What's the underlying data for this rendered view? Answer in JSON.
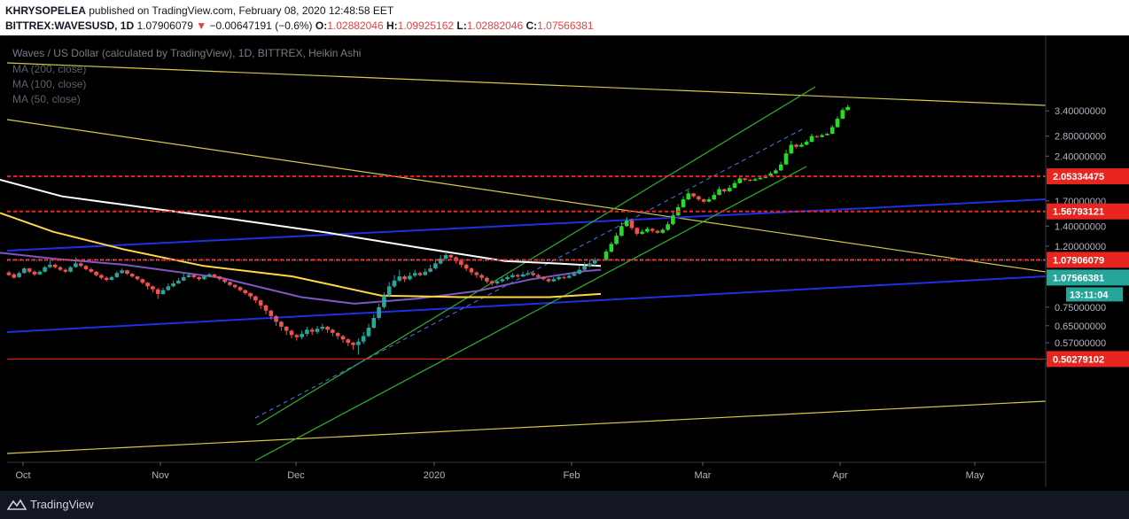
{
  "header": {
    "publisher": "KHRYSOPELEA",
    "published_text": "published on TradingView.com, February 08, 2020 12:48:58 EET",
    "symbol": "BITTREX:WAVESUSD, 1D",
    "last": "1.07906079",
    "arrow": "▼",
    "change": "−0.00647191 (−0.6%)",
    "o_label": "O:",
    "o_value": "1.02882046",
    "h_label": "H:",
    "h_value": "1.09925162",
    "l_label": "L:",
    "l_value": "1.02882046",
    "c_label": "C:",
    "c_value": "1.07566381"
  },
  "legend": {
    "title": "Waves / US Dollar (calculated by TradingView), 1D, BITTREX, Heikin Ashi",
    "ma200": "MA (200, close)",
    "ma100": "MA (100, close)",
    "ma50": "MA (50, close)"
  },
  "footer": {
    "brand": "TradingView"
  },
  "colors": {
    "background": "#000000",
    "up": "#26a69a",
    "down": "#ef5350",
    "projection_up": "#22dd22",
    "ma200": "#ffffff",
    "ma100": "#7e57c2",
    "ma50": "#ffd740",
    "trend_yellow": "#d4c94a",
    "trend_blue": "#1f2fe6",
    "channel_green": "#2bb52b",
    "level_red": "#ff1e1e"
  },
  "chart_data": {
    "type": "candlestick",
    "scale": "log",
    "x_ticks": [
      "Oct",
      "Nov",
      "Dec",
      "2020",
      "Feb",
      "Mar",
      "Apr",
      "May"
    ],
    "y_ticks": [
      "3.40000000",
      "2.80000000",
      "2.40000000",
      "1.70000000",
      "1.40000000",
      "1.20000000",
      "0.75000000",
      "0.65000000",
      "0.57000000"
    ],
    "y_range": [
      0.45,
      3.8
    ],
    "price_labels": [
      {
        "value": 2.05334475,
        "text": "2.05334475",
        "kind": "level"
      },
      {
        "value": 1.56793121,
        "text": "1.56793121",
        "kind": "level"
      },
      {
        "value": 1.07906079,
        "text": "1.07906079",
        "kind": "level"
      },
      {
        "value": 1.07566381,
        "text": "1.07566381",
        "kind": "last"
      },
      {
        "value": 0.50279102,
        "text": "0.50279102",
        "kind": "level"
      }
    ],
    "countdown": "13:11:04",
    "horizontal_levels": [
      2.05334475,
      1.56793121,
      1.07906079,
      0.50279102
    ],
    "last_close": 1.07566381,
    "candles_ohlc": [
      [
        0.98,
        0.96,
        0.992,
        0.955
      ],
      [
        0.965,
        0.94,
        0.975,
        0.935
      ],
      [
        0.945,
        0.975,
        0.985,
        0.94
      ],
      [
        0.975,
        1.01,
        1.02,
        0.97
      ],
      [
        1.01,
        0.985,
        1.015,
        0.975
      ],
      [
        0.985,
        0.965,
        0.995,
        0.955
      ],
      [
        0.965,
        0.985,
        0.995,
        0.96
      ],
      [
        0.985,
        1.02,
        1.03,
        0.98
      ],
      [
        1.02,
        1.04,
        1.07,
        1.015
      ],
      [
        1.04,
        1.02,
        1.05,
        1.01
      ],
      [
        1.02,
        1.0,
        1.03,
        0.99
      ],
      [
        1.0,
        0.985,
        1.01,
        0.975
      ],
      [
        0.985,
        1.02,
        1.03,
        0.98
      ],
      [
        1.02,
        1.05,
        1.1,
        1.015
      ],
      [
        1.05,
        1.03,
        1.06,
        1.02
      ],
      [
        1.03,
        1.005,
        1.04,
        0.995
      ],
      [
        1.005,
        0.985,
        1.015,
        0.975
      ],
      [
        0.985,
        0.96,
        0.99,
        0.95
      ],
      [
        0.96,
        0.94,
        0.97,
        0.93
      ],
      [
        0.94,
        0.925,
        0.95,
        0.915
      ],
      [
        0.925,
        0.945,
        0.955,
        0.92
      ],
      [
        0.945,
        0.975,
        0.99,
        0.94
      ],
      [
        0.975,
        0.995,
        1.01,
        0.97
      ],
      [
        0.995,
        0.97,
        1.0,
        0.96
      ],
      [
        0.97,
        0.95,
        0.975,
        0.94
      ],
      [
        0.95,
        0.93,
        0.955,
        0.92
      ],
      [
        0.93,
        0.905,
        0.935,
        0.895
      ],
      [
        0.905,
        0.88,
        0.91,
        0.86
      ],
      [
        0.88,
        0.86,
        0.885,
        0.84
      ],
      [
        0.86,
        0.83,
        0.87,
        0.8
      ],
      [
        0.83,
        0.855,
        0.87,
        0.825
      ],
      [
        0.855,
        0.88,
        0.9,
        0.85
      ],
      [
        0.88,
        0.9,
        0.92,
        0.875
      ],
      [
        0.9,
        0.92,
        0.94,
        0.895
      ],
      [
        0.92,
        0.945,
        0.97,
        0.915
      ],
      [
        0.945,
        0.96,
        0.98,
        0.94
      ],
      [
        0.96,
        0.945,
        0.965,
        0.935
      ],
      [
        0.945,
        0.93,
        0.95,
        0.92
      ],
      [
        0.93,
        0.95,
        0.96,
        0.925
      ],
      [
        0.95,
        0.965,
        0.975,
        0.945
      ],
      [
        0.965,
        0.95,
        0.97,
        0.94
      ],
      [
        0.95,
        0.93,
        0.955,
        0.92
      ],
      [
        0.93,
        0.91,
        0.935,
        0.9
      ],
      [
        0.91,
        0.89,
        0.915,
        0.88
      ],
      [
        0.89,
        0.875,
        0.895,
        0.865
      ],
      [
        0.875,
        0.855,
        0.88,
        0.845
      ],
      [
        0.855,
        0.835,
        0.86,
        0.825
      ],
      [
        0.835,
        0.815,
        0.84,
        0.8
      ],
      [
        0.815,
        0.79,
        0.82,
        0.775
      ],
      [
        0.79,
        0.76,
        0.795,
        0.74
      ],
      [
        0.76,
        0.73,
        0.765,
        0.71
      ],
      [
        0.73,
        0.7,
        0.735,
        0.68
      ],
      [
        0.7,
        0.67,
        0.705,
        0.65
      ],
      [
        0.67,
        0.645,
        0.675,
        0.625
      ],
      [
        0.645,
        0.625,
        0.65,
        0.605
      ],
      [
        0.625,
        0.605,
        0.63,
        0.59
      ],
      [
        0.605,
        0.595,
        0.61,
        0.58
      ],
      [
        0.595,
        0.61,
        0.625,
        0.585
      ],
      [
        0.61,
        0.63,
        0.645,
        0.6
      ],
      [
        0.63,
        0.62,
        0.64,
        0.605
      ],
      [
        0.62,
        0.635,
        0.65,
        0.61
      ],
      [
        0.635,
        0.645,
        0.66,
        0.625
      ],
      [
        0.645,
        0.63,
        0.65,
        0.615
      ],
      [
        0.63,
        0.615,
        0.635,
        0.6
      ],
      [
        0.615,
        0.6,
        0.62,
        0.585
      ],
      [
        0.6,
        0.585,
        0.605,
        0.57
      ],
      [
        0.585,
        0.57,
        0.59,
        0.555
      ],
      [
        0.57,
        0.56,
        0.575,
        0.54
      ],
      [
        0.56,
        0.575,
        0.59,
        0.52
      ],
      [
        0.575,
        0.6,
        0.62,
        0.565
      ],
      [
        0.6,
        0.64,
        0.66,
        0.595
      ],
      [
        0.64,
        0.69,
        0.71,
        0.635
      ],
      [
        0.69,
        0.75,
        0.77,
        0.68
      ],
      [
        0.75,
        0.82,
        0.84,
        0.74
      ],
      [
        0.82,
        0.88,
        0.91,
        0.81
      ],
      [
        0.88,
        0.92,
        0.96,
        0.87
      ],
      [
        0.92,
        0.95,
        1.0,
        0.91
      ],
      [
        0.95,
        0.93,
        0.96,
        0.91
      ],
      [
        0.93,
        0.955,
        0.98,
        0.92
      ],
      [
        0.955,
        0.975,
        1.0,
        0.945
      ],
      [
        0.975,
        0.96,
        0.985,
        0.95
      ],
      [
        0.96,
        0.985,
        1.01,
        0.955
      ],
      [
        0.985,
        1.01,
        1.04,
        0.98
      ],
      [
        1.01,
        1.05,
        1.08,
        1.0
      ],
      [
        1.05,
        1.09,
        1.12,
        1.04
      ],
      [
        1.09,
        1.12,
        1.15,
        1.08
      ],
      [
        1.12,
        1.1,
        1.13,
        1.08
      ],
      [
        1.1,
        1.07,
        1.11,
        1.05
      ],
      [
        1.07,
        1.04,
        1.08,
        1.02
      ],
      [
        1.04,
        1.01,
        1.05,
        0.99
      ],
      [
        1.01,
        0.98,
        1.02,
        0.96
      ],
      [
        0.98,
        0.96,
        0.99,
        0.94
      ],
      [
        0.96,
        0.94,
        0.97,
        0.92
      ],
      [
        0.94,
        0.915,
        0.95,
        0.9
      ],
      [
        0.915,
        0.9,
        0.925,
        0.885
      ],
      [
        0.9,
        0.915,
        0.93,
        0.89
      ],
      [
        0.915,
        0.93,
        0.945,
        0.905
      ],
      [
        0.93,
        0.945,
        0.96,
        0.92
      ],
      [
        0.945,
        0.96,
        0.975,
        0.935
      ],
      [
        0.96,
        0.95,
        0.97,
        0.94
      ],
      [
        0.95,
        0.965,
        0.985,
        0.945
      ],
      [
        0.965,
        0.975,
        0.995,
        0.955
      ],
      [
        0.975,
        0.96,
        0.985,
        0.95
      ],
      [
        0.96,
        0.945,
        0.97,
        0.935
      ],
      [
        0.945,
        0.93,
        0.95,
        0.92
      ],
      [
        0.93,
        0.915,
        0.94,
        0.905
      ],
      [
        0.915,
        0.93,
        0.945,
        0.91
      ],
      [
        0.93,
        0.945,
        0.96,
        0.92
      ],
      [
        0.945,
        0.94,
        0.955,
        0.93
      ],
      [
        0.94,
        0.955,
        0.97,
        0.935
      ],
      [
        0.955,
        0.97,
        0.99,
        0.95
      ],
      [
        0.97,
        1.0,
        1.03,
        0.965
      ],
      [
        1.0,
        1.03,
        1.06,
        0.995
      ],
      [
        1.03,
        1.05,
        1.08,
        1.02
      ],
      [
        1.05,
        1.076,
        1.099,
        1.029
      ]
    ],
    "projection_ohlc": [
      [
        1.08,
        1.15,
        1.17,
        1.07
      ],
      [
        1.15,
        1.22,
        1.24,
        1.14
      ],
      [
        1.22,
        1.3,
        1.33,
        1.21
      ],
      [
        1.3,
        1.4,
        1.44,
        1.29
      ],
      [
        1.4,
        1.46,
        1.5,
        1.39
      ],
      [
        1.46,
        1.38,
        1.47,
        1.36
      ],
      [
        1.38,
        1.32,
        1.39,
        1.3
      ],
      [
        1.32,
        1.34,
        1.36,
        1.31
      ],
      [
        1.34,
        1.37,
        1.39,
        1.33
      ],
      [
        1.37,
        1.35,
        1.38,
        1.33
      ],
      [
        1.35,
        1.33,
        1.36,
        1.32
      ],
      [
        1.33,
        1.36,
        1.38,
        1.32
      ],
      [
        1.36,
        1.42,
        1.45,
        1.35
      ],
      [
        1.42,
        1.52,
        1.56,
        1.41
      ],
      [
        1.52,
        1.62,
        1.66,
        1.51
      ],
      [
        1.62,
        1.72,
        1.76,
        1.61
      ],
      [
        1.72,
        1.8,
        1.84,
        1.71
      ],
      [
        1.8,
        1.76,
        1.81,
        1.74
      ],
      [
        1.76,
        1.72,
        1.77,
        1.7
      ],
      [
        1.72,
        1.69,
        1.73,
        1.67
      ],
      [
        1.69,
        1.72,
        1.75,
        1.68
      ],
      [
        1.72,
        1.78,
        1.82,
        1.71
      ],
      [
        1.78,
        1.86,
        1.9,
        1.77
      ],
      [
        1.86,
        1.83,
        1.87,
        1.81
      ],
      [
        1.83,
        1.88,
        1.92,
        1.82
      ],
      [
        1.88,
        1.95,
        1.99,
        1.87
      ],
      [
        1.95,
        2.02,
        2.06,
        1.94
      ],
      [
        2.02,
        2.0,
        2.03,
        1.98
      ],
      [
        2.0,
        1.99,
        2.01,
        1.97
      ],
      [
        1.99,
        2.01,
        2.03,
        1.98
      ],
      [
        2.01,
        2.03,
        2.05,
        2.0
      ],
      [
        2.03,
        2.06,
        2.08,
        2.02
      ],
      [
        2.06,
        2.1,
        2.13,
        2.05
      ],
      [
        2.1,
        2.15,
        2.18,
        2.09
      ],
      [
        2.15,
        2.25,
        2.3,
        2.14
      ],
      [
        2.25,
        2.45,
        2.52,
        2.24
      ],
      [
        2.45,
        2.62,
        2.7,
        2.44
      ],
      [
        2.62,
        2.58,
        2.64,
        2.55
      ],
      [
        2.58,
        2.62,
        2.66,
        2.57
      ],
      [
        2.62,
        2.68,
        2.72,
        2.61
      ],
      [
        2.68,
        2.8,
        2.85,
        2.67
      ],
      [
        2.8,
        2.78,
        2.82,
        2.76
      ],
      [
        2.78,
        2.82,
        2.85,
        2.77
      ],
      [
        2.82,
        2.85,
        2.88,
        2.81
      ],
      [
        2.85,
        3.0,
        3.05,
        2.84
      ],
      [
        3.0,
        3.2,
        3.26,
        2.99
      ],
      [
        3.2,
        3.42,
        3.48,
        3.19
      ],
      [
        3.42,
        3.5,
        3.56,
        3.41
      ]
    ],
    "ma200": [
      [
        0,
        2.0
      ],
      [
        70,
        1.76
      ],
      [
        160,
        1.62
      ],
      [
        260,
        1.48
      ],
      [
        370,
        1.33
      ],
      [
        470,
        1.19
      ],
      [
        570,
        1.07
      ],
      [
        640,
        1.045
      ],
      [
        678,
        1.03
      ]
    ],
    "ma100": [
      [
        0,
        1.14
      ],
      [
        60,
        1.09
      ],
      [
        140,
        1.04
      ],
      [
        250,
        0.94
      ],
      [
        340,
        0.81
      ],
      [
        400,
        0.77
      ],
      [
        470,
        0.8
      ],
      [
        540,
        0.85
      ],
      [
        600,
        0.93
      ],
      [
        660,
        0.99
      ],
      [
        678,
        1.0
      ]
    ],
    "ma50": [
      [
        0,
        1.55
      ],
      [
        60,
        1.34
      ],
      [
        140,
        1.17
      ],
      [
        230,
        1.03
      ],
      [
        330,
        0.95
      ],
      [
        430,
        0.82
      ],
      [
        520,
        0.81
      ],
      [
        620,
        0.81
      ],
      [
        678,
        0.83
      ]
    ]
  }
}
